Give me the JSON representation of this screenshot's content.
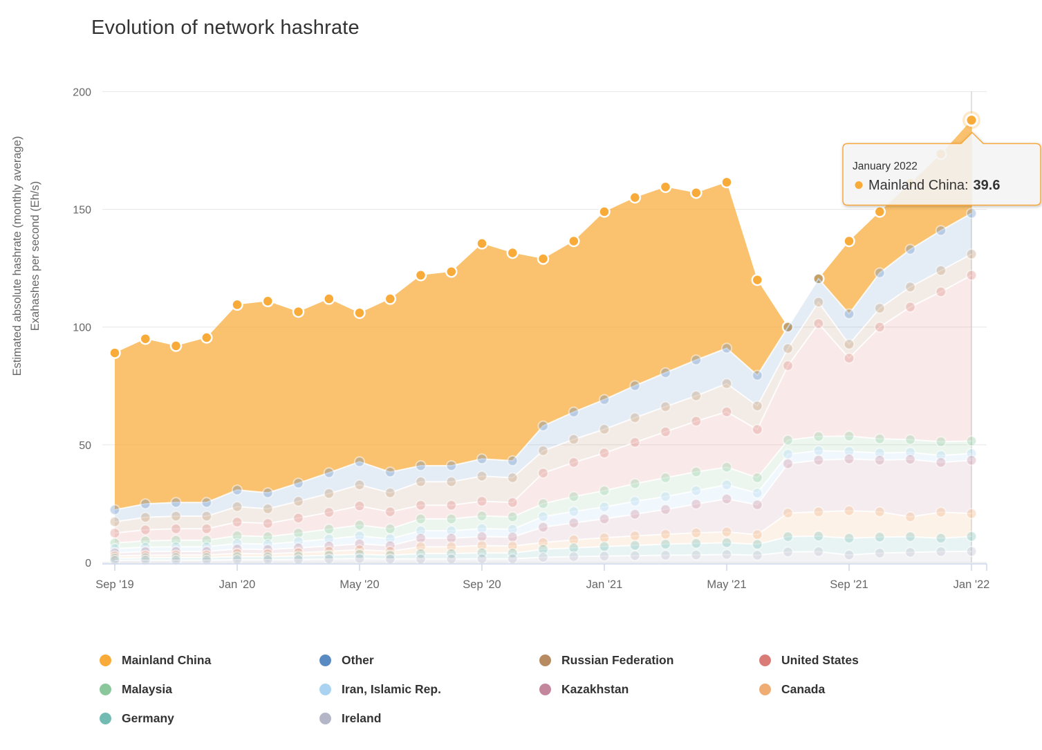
{
  "chart": {
    "title": "Evolution of network hashrate",
    "y_axis": {
      "title_line1": "Estimated absolute hashrate (monthly average)",
      "title_line2": "Exahashes per second (Eh/s)",
      "ticks": [
        0,
        50,
        100,
        150,
        200
      ]
    },
    "x_axis": {
      "tick_labels": [
        "Sep '19",
        "Jan '20",
        "May '20",
        "Sep '20",
        "Jan '21",
        "May '21",
        "Sep '21",
        "Jan '22"
      ],
      "tick_indices": [
        0,
        4,
        8,
        12,
        16,
        20,
        24,
        28
      ]
    }
  },
  "chart_data": {
    "type": "area",
    "stacking": "normal",
    "title": "Evolution of network hashrate",
    "ylabel": "Estimated absolute hashrate (monthly average) Exahashes per second (Eh/s)",
    "ylim": [
      0,
      200
    ],
    "grid": "horizontal",
    "legend_position": "bottom",
    "x": [
      "Sep 2019",
      "Oct 2019",
      "Nov 2019",
      "Dec 2019",
      "Jan 2020",
      "Feb 2020",
      "Mar 2020",
      "Apr 2020",
      "May 2020",
      "Jun 2020",
      "Jul 2020",
      "Aug 2020",
      "Sep 2020",
      "Oct 2020",
      "Nov 2020",
      "Dec 2020",
      "Jan 2021",
      "Feb 2021",
      "Mar 2021",
      "Apr 2021",
      "May 2021",
      "Jun 2021",
      "Jul 2021",
      "Aug 2021",
      "Sep 2021",
      "Oct 2021",
      "Nov 2021",
      "Dec 2021",
      "Jan 2022"
    ],
    "series": [
      {
        "name": "Mainland China",
        "color": "#F8AB38",
        "values": [
          66.6,
          70.1,
          66.5,
          70.0,
          78.7,
          81.4,
          72.8,
          73.9,
          63.2,
          73.6,
          80.9,
          82.4,
          91.5,
          88.3,
          71.0,
          72.6,
          79.8,
          79.9,
          78.9,
          71.0,
          70.5,
          40.5,
          0,
          0,
          30.9,
          26.0,
          28.0,
          32.5,
          39.6
        ]
      },
      {
        "name": "Other",
        "color": "#5A8AC2",
        "values": [
          5.1,
          5.7,
          5.8,
          5.8,
          7.1,
          6.8,
          7.7,
          8.8,
          9.8,
          8.8,
          6.8,
          6.8,
          7.3,
          7.2,
          10.5,
          11.6,
          12.6,
          13.6,
          14.4,
          15.2,
          15.0,
          13.0,
          9.1,
          9.9,
          12.9,
          15.0,
          16.0,
          17.0,
          17.3
        ]
      },
      {
        "name": "Russian Federation",
        "color": "#B68B62",
        "values": [
          4.8,
          5.3,
          5.4,
          5.4,
          6.5,
          6.2,
          7.1,
          8.0,
          9.0,
          8.1,
          10.0,
          10.0,
          10.7,
          10.5,
          9.5,
          9.8,
          10.1,
          10.5,
          10.7,
          10.8,
          12.0,
          10.0,
          7.3,
          9.1,
          5.9,
          8.0,
          8.5,
          9.0,
          9.0
        ]
      },
      {
        "name": "United States",
        "color": "#D97C77",
        "values": [
          4.2,
          4.7,
          4.8,
          4.8,
          5.8,
          5.6,
          6.4,
          7.1,
          8.1,
          7.2,
          5.8,
          5.8,
          6.2,
          6.1,
          13.0,
          14.5,
          16.0,
          17.5,
          19.5,
          21.5,
          23.5,
          20.5,
          31.6,
          48.0,
          33.1,
          47.5,
          56.3,
          63.7,
          70.4
        ]
      },
      {
        "name": "Malaysia",
        "color": "#8AC79B",
        "values": [
          2.4,
          2.7,
          2.8,
          2.8,
          3.3,
          3.2,
          3.6,
          4.2,
          4.6,
          4.2,
          5.0,
          5.0,
          5.4,
          5.3,
          5.5,
          6.3,
          6.9,
          7.5,
          8.0,
          8.0,
          7.5,
          6.5,
          6.0,
          6.0,
          6.5,
          6.0,
          5.4,
          5.8,
          5.3
        ]
      },
      {
        "name": "Iran, Islamic Rep.",
        "color": "#A9D3F1",
        "values": [
          1.8,
          1.9,
          2.0,
          2.0,
          2.4,
          2.3,
          2.7,
          3.0,
          3.4,
          3.0,
          3.2,
          3.2,
          3.4,
          3.3,
          4.5,
          4.9,
          5.1,
          5.5,
          5.5,
          5.7,
          6.0,
          5.0,
          4.0,
          4.0,
          3.2,
          3.0,
          3.0,
          3.0,
          2.9
        ]
      },
      {
        "name": "Kazakhstan",
        "color": "#C3869D",
        "values": [
          1.3,
          1.5,
          1.5,
          1.5,
          1.8,
          1.8,
          2.0,
          2.2,
          2.5,
          2.3,
          3.6,
          3.6,
          3.8,
          3.8,
          6.5,
          7.2,
          8.0,
          9.2,
          10.5,
          12.2,
          14.0,
          12.7,
          21.0,
          22.0,
          22.0,
          22.0,
          24.4,
          21.1,
          22.6
        ]
      },
      {
        "name": "Canada",
        "color": "#EFAC73",
        "values": [
          1.0,
          1.1,
          1.1,
          1.1,
          1.4,
          1.3,
          1.5,
          1.7,
          1.9,
          1.7,
          2.9,
          2.9,
          3.1,
          3.0,
          2.9,
          3.4,
          3.7,
          4.0,
          4.2,
          4.5,
          4.6,
          4.1,
          10.0,
          10.3,
          11.7,
          10.7,
          8.4,
          11.1,
          9.7
        ]
      },
      {
        "name": "Germany",
        "color": "#72BBB2",
        "values": [
          0.9,
          1.0,
          1.1,
          1.1,
          1.3,
          1.2,
          1.4,
          1.6,
          1.8,
          1.6,
          2.3,
          2.3,
          2.5,
          2.4,
          3.4,
          3.7,
          4.1,
          4.4,
          4.7,
          4.9,
          5.0,
          4.6,
          6.5,
          6.6,
          7.1,
          6.8,
          6.7,
          5.7,
          6.4
        ]
      },
      {
        "name": "Ireland",
        "color": "#B3B6C6",
        "values": [
          0.9,
          1.0,
          1.0,
          1.0,
          1.2,
          1.2,
          1.3,
          1.5,
          1.7,
          1.5,
          1.5,
          1.5,
          1.6,
          1.6,
          2.2,
          2.5,
          2.7,
          2.9,
          3.1,
          3.2,
          3.4,
          3.1,
          4.5,
          4.6,
          3.2,
          4.0,
          4.3,
          4.6,
          4.7
        ]
      }
    ]
  },
  "tooltip": {
    "header": "January 2022",
    "label": "Mainland China:",
    "value": "39.6",
    "highlight_index": 28
  },
  "legend": {
    "items": [
      {
        "label": "Mainland China",
        "color": "#F8AB38"
      },
      {
        "label": "Other",
        "color": "#5A8AC2"
      },
      {
        "label": "Russian Federation",
        "color": "#B68B62"
      },
      {
        "label": "United States",
        "color": "#D97C77"
      },
      {
        "label": "Malaysia",
        "color": "#8AC79B"
      },
      {
        "label": "Iran, Islamic Rep.",
        "color": "#A9D3F1"
      },
      {
        "label": "Kazakhstan",
        "color": "#C3869D"
      },
      {
        "label": "Canada",
        "color": "#EFAC73"
      },
      {
        "label": "Germany",
        "color": "#72BBB2"
      },
      {
        "label": "Ireland",
        "color": "#B3B6C6"
      }
    ]
  },
  "colors": {
    "accent": "#F8AB38",
    "grid_line": "#e6e6e6",
    "axis_line": "#ccd6eb",
    "axis_text": "#666666",
    "title_text": "#333333",
    "crosshair": "#cccccc",
    "tooltip_bg": "#f8f8f8"
  }
}
